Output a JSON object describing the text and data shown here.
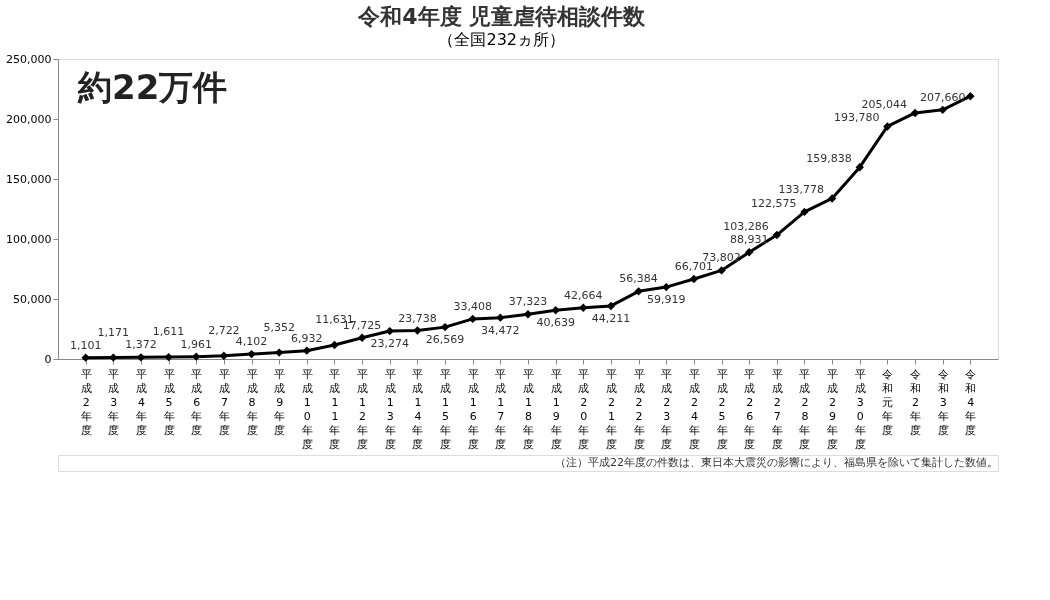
{
  "chart_data": {
    "type": "line",
    "title": "令和4年度 児童虐待相談件数",
    "subtitle": "（全国232ヵ所）",
    "categories": [
      "平成2年度",
      "平成3年度",
      "平成4年度",
      "平成5年度",
      "平成6年度",
      "平成7年度",
      "平成8年度",
      "平成9年度",
      "平成10年度",
      "平成11年度",
      "平成12年度",
      "平成13年度",
      "平成14年度",
      "平成15年度",
      "平成16年度",
      "平成17年度",
      "平成18年度",
      "平成19年度",
      "平成20年度",
      "平成21年度",
      "平成22年度",
      "平成23年度",
      "平成24年度",
      "平成25年度",
      "平成26年度",
      "平成27年度",
      "平成28年度",
      "平成29年度",
      "平成30年度",
      "令和元年度",
      "令和2年度",
      "令和3年度",
      "令和4年度"
    ],
    "series": [
      {
        "color": "#000000",
        "values": [
          1101,
          1171,
          1372,
          1611,
          1961,
          2722,
          4102,
          5352,
          6932,
          11631,
          17725,
          23274,
          23738,
          26569,
          33408,
          34472,
          37323,
          40639,
          42664,
          44211,
          56384,
          59919,
          66701,
          73802,
          88931,
          103286,
          122575,
          133778,
          159838,
          193780,
          205044,
          207660,
          219000
        ],
        "value_labels": [
          "1,101",
          "1,171",
          "1,372",
          "1,611",
          "1,961",
          "2,722",
          "4,102",
          "5,352",
          "6,932",
          "11,631",
          "17,725",
          "23,274",
          "23,738",
          "26,569",
          "33,408",
          "34,472",
          "37,323",
          "40,639",
          "42,664",
          "44,211",
          "56,384",
          "59,919",
          "66,701",
          "73,802",
          "88,931",
          "103,286",
          "122,575",
          "133,778",
          "159,838",
          "193,780",
          "205,044",
          "207,660",
          null
        ]
      }
    ],
    "ylim": [
      0,
      250000
    ],
    "yticks": [
      0,
      {
        "value": 50000,
        "label": "50,000"
      },
      {
        "value": 100000,
        "label": "100,000"
      },
      {
        "value": 150000,
        "label": "150,000"
      },
      {
        "value": 200000,
        "label": "200,000"
      },
      {
        "value": 250000,
        "label": "250,000"
      }
    ],
    "marker": "diamond",
    "line_style": "solid",
    "grid": false,
    "annotations": [
      "約22万件",
      "（注）平成22年度の件数は、東日本大震災の影響により、福島県を除いて集計した数値。"
    ]
  }
}
